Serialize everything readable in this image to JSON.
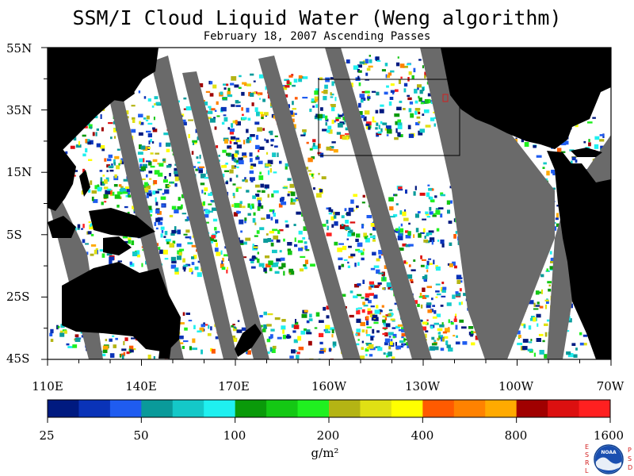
{
  "title": "SSM/I Cloud Liquid Water (Weng algorithm)",
  "subtitle": "February 18, 2007  Ascending Passes",
  "map": {
    "region": "Pacific Ocean",
    "latitude_labels": [
      "55N",
      "35N",
      "15N",
      "5S",
      "25S",
      "45S"
    ],
    "longitude_labels": [
      "110E",
      "140E",
      "170E",
      "160W",
      "130W",
      "100W",
      "70W"
    ],
    "colors": {
      "land": "#000000",
      "no_data_swath_gap": "#6a6a6a",
      "clear": "#ffffff"
    }
  },
  "colorbar": {
    "labels": [
      "25",
      "50",
      "100",
      "200",
      "400",
      "800",
      "1600"
    ],
    "unit": "g/m²",
    "colors": [
      "#001a80",
      "#0a33b8",
      "#1f5cf0",
      "#0a9a9a",
      "#14c8c8",
      "#1ff0f0",
      "#0a9a0a",
      "#14c814",
      "#20f020",
      "#b4b414",
      "#e0e014",
      "#ffff00",
      "#ff5a00",
      "#ff8200",
      "#ffaa00",
      "#a00000",
      "#dc1010",
      "#ff2020"
    ]
  },
  "logo": {
    "left_letters": [
      "E",
      "S",
      "R",
      "L"
    ],
    "right_letters": [
      "P",
      "S",
      "D"
    ],
    "center_text": "NOAA"
  }
}
